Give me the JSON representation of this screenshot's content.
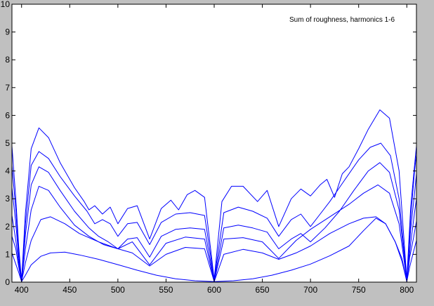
{
  "chart_data": {
    "type": "line",
    "title": "",
    "xlabel": "",
    "ylabel": "",
    "annotation": "Sum of roughness, harmonics 1-6",
    "xlim": [
      390,
      810
    ],
    "ylim": [
      0,
      10
    ],
    "xticks": [
      400,
      450,
      500,
      550,
      600,
      650,
      700,
      750,
      800
    ],
    "yticks": [
      0,
      1,
      2,
      3,
      4,
      5,
      6,
      7,
      8,
      9,
      10
    ],
    "grid": false,
    "line_color": "#0000ff",
    "axes_background": "#ffffff",
    "figure_background": "#c0c0c0",
    "series": [
      {
        "x": [
          390,
          393,
          397,
          400,
          404,
          410,
          420,
          430,
          445,
          460,
          480,
          500,
          520,
          540,
          560,
          580,
          600,
          620,
          640,
          660,
          680,
          700,
          720,
          740,
          755,
          768,
          778,
          788,
          795,
          800,
          803,
          807,
          810
        ],
        "y": [
          1.05,
          0.75,
          0.35,
          0.02,
          0.25,
          0.62,
          0.93,
          1.05,
          1.08,
          0.98,
          0.82,
          0.63,
          0.43,
          0.25,
          0.12,
          0.05,
          0.02,
          0.05,
          0.12,
          0.25,
          0.43,
          0.65,
          0.95,
          1.3,
          1.85,
          2.3,
          2.1,
          1.45,
          0.75,
          0.02,
          0.55,
          1.1,
          1.5
        ]
      },
      {
        "x": [
          390,
          394,
          397,
          400,
          404,
          410,
          420,
          430,
          445,
          460,
          480,
          500,
          515,
          533,
          550,
          570,
          590,
          600,
          610,
          630,
          650,
          667,
          685,
          700,
          720,
          740,
          755,
          768,
          778,
          788,
          795,
          800,
          803,
          807,
          810
        ],
        "y": [
          1.65,
          1.2,
          0.55,
          0.02,
          0.7,
          1.5,
          2.25,
          2.35,
          2.1,
          1.75,
          1.45,
          1.2,
          1.05,
          0.58,
          1.0,
          1.25,
          1.2,
          0.02,
          1.0,
          1.18,
          1.05,
          0.82,
          1.05,
          1.3,
          1.75,
          2.1,
          2.3,
          2.35,
          2.1,
          1.45,
          0.85,
          0.02,
          0.9,
          1.6,
          2.2
        ]
      },
      {
        "x": [
          390,
          394,
          397,
          400,
          404,
          410,
          418,
          428,
          440,
          455,
          470,
          485,
          500,
          515,
          533,
          550,
          570,
          590,
          600,
          610,
          630,
          650,
          667,
          685,
          700,
          720,
          740,
          755,
          770,
          782,
          792,
          800,
          804,
          808,
          810
        ],
        "y": [
          2.4,
          1.5,
          0.7,
          0.02,
          1.2,
          2.6,
          3.45,
          3.3,
          2.7,
          2.05,
          1.65,
          1.35,
          1.2,
          1.45,
          0.62,
          1.4,
          1.62,
          1.55,
          0.03,
          1.55,
          1.6,
          1.45,
          0.85,
          1.5,
          1.9,
          2.35,
          2.8,
          3.2,
          3.5,
          3.2,
          2.1,
          0.05,
          1.4,
          2.5,
          3.0
        ]
      },
      {
        "x": [
          390,
          394,
          397,
          400,
          404,
          410,
          418,
          428,
          440,
          455,
          470,
          480,
          490,
          500,
          510,
          520,
          533,
          545,
          560,
          575,
          590,
          600,
          610,
          625,
          640,
          655,
          667,
          680,
          690,
          700,
          715,
          730,
          745,
          760,
          772,
          782,
          792,
          800,
          804,
          808,
          810
        ],
        "y": [
          3.4,
          2.1,
          0.9,
          0.05,
          1.7,
          3.5,
          4.15,
          3.95,
          3.3,
          2.55,
          1.95,
          1.65,
          1.45,
          1.2,
          1.55,
          1.6,
          0.9,
          1.65,
          1.9,
          1.95,
          1.9,
          0.05,
          1.95,
          2.05,
          1.95,
          1.8,
          1.2,
          1.55,
          1.75,
          1.45,
          1.95,
          2.55,
          3.3,
          4.0,
          4.3,
          3.95,
          2.6,
          0.05,
          1.9,
          3.2,
          3.9
        ]
      },
      {
        "x": [
          390,
          394,
          397,
          400,
          404,
          410,
          418,
          428,
          440,
          455,
          468,
          476,
          484,
          492,
          500,
          510,
          520,
          533,
          545,
          560,
          575,
          590,
          600,
          610,
          625,
          640,
          655,
          667,
          680,
          690,
          700,
          710,
          720,
          735,
          750,
          762,
          773,
          783,
          792,
          800,
          804,
          808,
          810
        ],
        "y": [
          4.2,
          2.6,
          1.1,
          0.05,
          2.1,
          4.2,
          4.7,
          4.45,
          3.8,
          3.1,
          2.55,
          2.1,
          2.25,
          2.1,
          1.65,
          2.1,
          2.15,
          1.35,
          2.15,
          2.45,
          2.5,
          2.4,
          0.1,
          2.5,
          2.7,
          2.55,
          2.3,
          1.65,
          2.25,
          2.45,
          2.0,
          2.45,
          2.9,
          3.65,
          4.4,
          4.85,
          5.0,
          4.55,
          3.0,
          0.1,
          2.3,
          4.0,
          4.6
        ]
      },
      {
        "x": [
          390,
          394,
          397,
          400,
          404,
          410,
          418,
          428,
          440,
          455,
          465,
          470,
          476,
          484,
          492,
          500,
          510,
          520,
          533,
          545,
          555,
          563,
          572,
          580,
          590,
          600,
          608,
          618,
          630,
          645,
          655,
          667,
          680,
          690,
          700,
          710,
          717,
          725,
          733,
          740,
          750,
          760,
          772,
          782,
          792,
          800,
          804,
          808,
          810
        ],
        "y": [
          4.9,
          3.0,
          1.3,
          0.05,
          2.5,
          4.8,
          5.55,
          5.2,
          4.3,
          3.4,
          2.9,
          2.6,
          2.75,
          2.45,
          2.7,
          2.1,
          2.65,
          2.75,
          1.55,
          2.65,
          2.95,
          2.6,
          3.15,
          3.3,
          3.05,
          0.1,
          2.9,
          3.45,
          3.45,
          2.9,
          3.3,
          2.0,
          3.0,
          3.35,
          3.1,
          3.5,
          3.7,
          3.05,
          3.9,
          4.15,
          4.8,
          5.5,
          6.2,
          5.9,
          4.0,
          0.1,
          2.7,
          4.2,
          4.9
        ]
      }
    ]
  }
}
